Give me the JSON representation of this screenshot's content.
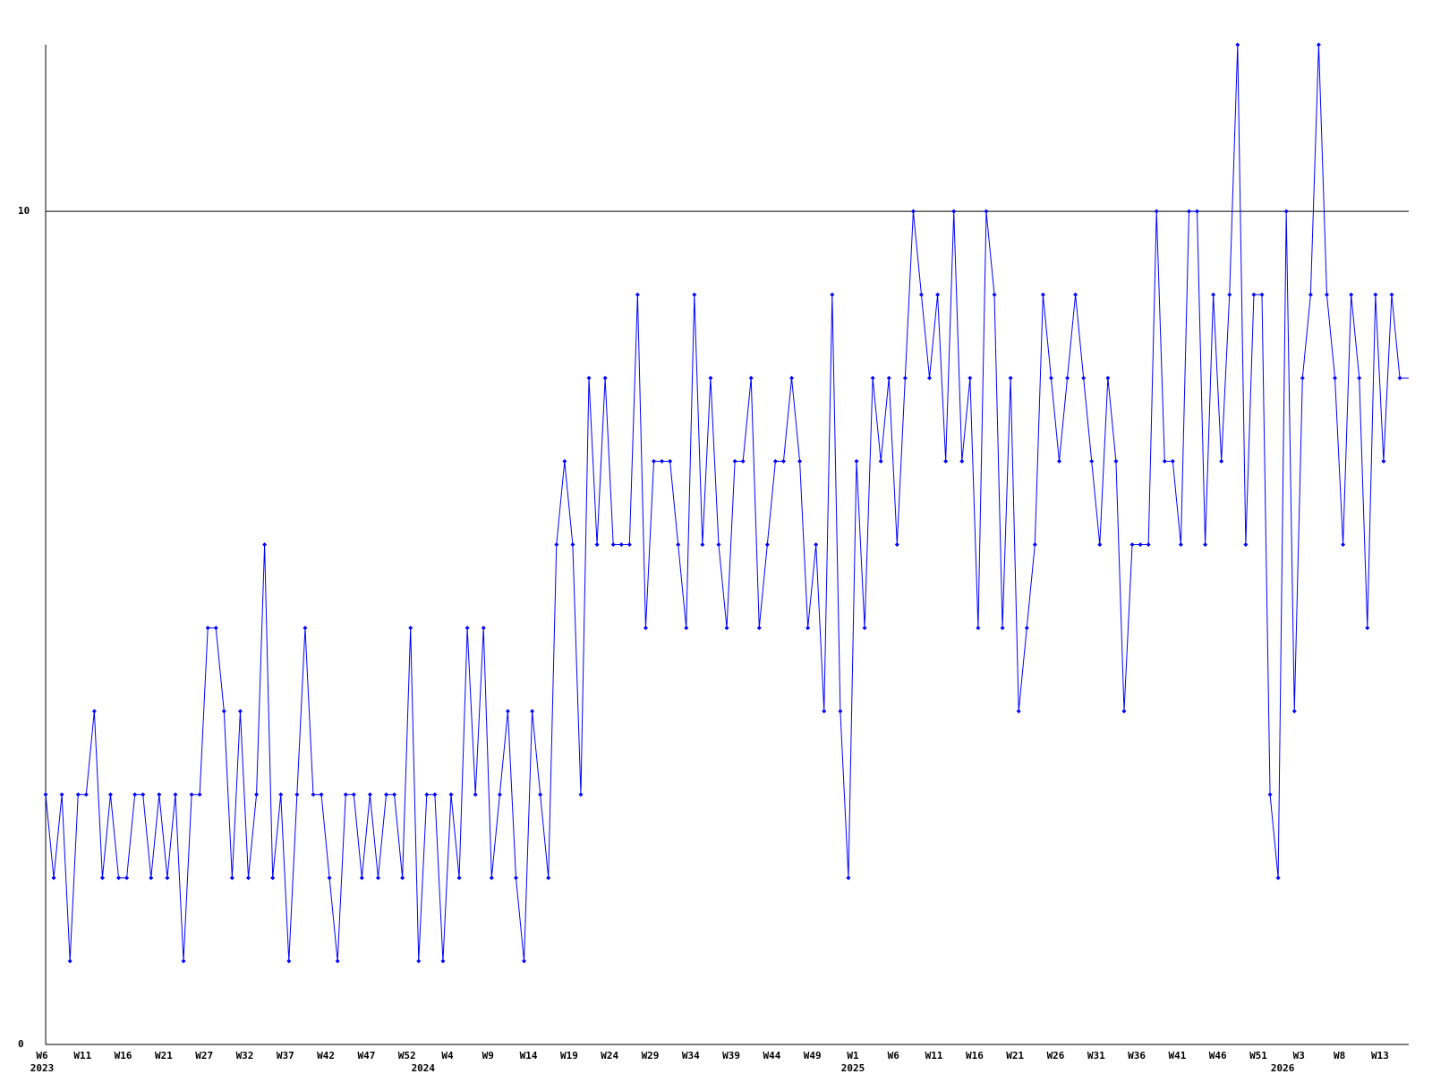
{
  "chart_data": {
    "type": "line",
    "color": "#0000ff",
    "ylim": [
      0,
      12
    ],
    "yticks": [
      0,
      10
    ],
    "grid": true,
    "categories": [
      "W6",
      null,
      null,
      null,
      null,
      "W11",
      null,
      null,
      null,
      null,
      "W16",
      null,
      null,
      null,
      null,
      "W21",
      null,
      null,
      null,
      null,
      "W27",
      null,
      null,
      null,
      null,
      "W32",
      null,
      null,
      null,
      null,
      "W37",
      null,
      null,
      null,
      null,
      "W42",
      null,
      null,
      null,
      null,
      "W47",
      null,
      null,
      null,
      null,
      "W52",
      null,
      null,
      null,
      null,
      "W4",
      null,
      null,
      null,
      null,
      "W9",
      null,
      null,
      null,
      null,
      "W14",
      null,
      null,
      null,
      null,
      "W19",
      null,
      null,
      null,
      null,
      "W24",
      null,
      null,
      null,
      null,
      "W29",
      null,
      null,
      null,
      null,
      "W34",
      null,
      null,
      null,
      null,
      "W39",
      null,
      null,
      null,
      null,
      "W44",
      null,
      null,
      null,
      null,
      "W49",
      null,
      null,
      null,
      null,
      "W1",
      null,
      null,
      null,
      null,
      "W6",
      null,
      null,
      null,
      null,
      "W11",
      null,
      null,
      null,
      null,
      "W16",
      null,
      null,
      null,
      null,
      "W21",
      null,
      null,
      null,
      null,
      "W26",
      null,
      null,
      null,
      null,
      "W31",
      null,
      null,
      null,
      null,
      "W36",
      null,
      null,
      null,
      null,
      "W41",
      null,
      null,
      null,
      null,
      "W46",
      null,
      null,
      null,
      null,
      "W51",
      null,
      null,
      null,
      null,
      "W3",
      null,
      null,
      null,
      null,
      "W8",
      null,
      null,
      null,
      null,
      "W13",
      null,
      null
    ],
    "years": [
      "2023",
      null,
      null,
      null,
      null,
      null,
      null,
      null,
      null,
      null,
      null,
      null,
      null,
      null,
      null,
      null,
      null,
      null,
      null,
      null,
      null,
      null,
      null,
      null,
      null,
      null,
      null,
      null,
      null,
      null,
      null,
      null,
      null,
      null,
      null,
      null,
      null,
      null,
      null,
      null,
      null,
      null,
      null,
      null,
      null,
      null,
      null,
      "2024",
      null,
      null,
      null,
      null,
      null,
      null,
      null,
      null,
      null,
      null,
      null,
      null,
      null,
      null,
      null,
      null,
      null,
      null,
      null,
      null,
      null,
      null,
      null,
      null,
      null,
      null,
      null,
      null,
      null,
      null,
      null,
      null,
      null,
      null,
      null,
      null,
      null,
      null,
      null,
      null,
      null,
      null,
      null,
      null,
      null,
      null,
      null,
      null,
      null,
      null,
      null,
      null,
      "2025",
      null,
      null,
      null,
      null,
      null,
      null,
      null,
      null,
      null,
      null,
      null,
      null,
      null,
      null,
      null,
      null,
      null,
      null,
      null,
      null,
      null,
      null,
      null,
      null,
      null,
      null,
      null,
      null,
      null,
      null,
      null,
      null,
      null,
      null,
      null,
      null,
      null,
      null,
      null,
      null,
      null,
      null,
      null,
      null,
      null,
      null,
      null,
      null,
      null,
      null,
      null,
      null,
      "2026",
      null,
      null,
      null,
      null,
      null,
      null,
      null,
      null,
      null,
      null,
      null,
      null,
      null,
      null
    ],
    "values": [
      3,
      2,
      3,
      1,
      3,
      3,
      4,
      2,
      3,
      2,
      2,
      3,
      3,
      2,
      3,
      2,
      3,
      1,
      3,
      3,
      5,
      5,
      4,
      2,
      4,
      2,
      3,
      6,
      2,
      3,
      1,
      3,
      5,
      3,
      3,
      2,
      1,
      3,
      3,
      2,
      3,
      2,
      3,
      3,
      2,
      5,
      1,
      3,
      3,
      1,
      3,
      2,
      5,
      3,
      5,
      2,
      3,
      4,
      2,
      1,
      4,
      3,
      2,
      6,
      7,
      6,
      3,
      8,
      6,
      8,
      6,
      6,
      6,
      9,
      5,
      7,
      7,
      7,
      6,
      5,
      9,
      6,
      8,
      6,
      5,
      7,
      7,
      8,
      5,
      6,
      7,
      7,
      8,
      7,
      5,
      6,
      4,
      9,
      4,
      2,
      7,
      5,
      8,
      7,
      8,
      6,
      8,
      10,
      9,
      8,
      9,
      7,
      10,
      7,
      8,
      5,
      10,
      9,
      5,
      8,
      4,
      5,
      6,
      9,
      8,
      7,
      8,
      9,
      8,
      7,
      6,
      8,
      7,
      4,
      6,
      6,
      6,
      10,
      7,
      7,
      6,
      10,
      10,
      6,
      9,
      7,
      9,
      12,
      6,
      9,
      9,
      3,
      2,
      10,
      4,
      8,
      9,
      12,
      9,
      8,
      6,
      9,
      8,
      5,
      9,
      7,
      9,
      8
    ]
  }
}
